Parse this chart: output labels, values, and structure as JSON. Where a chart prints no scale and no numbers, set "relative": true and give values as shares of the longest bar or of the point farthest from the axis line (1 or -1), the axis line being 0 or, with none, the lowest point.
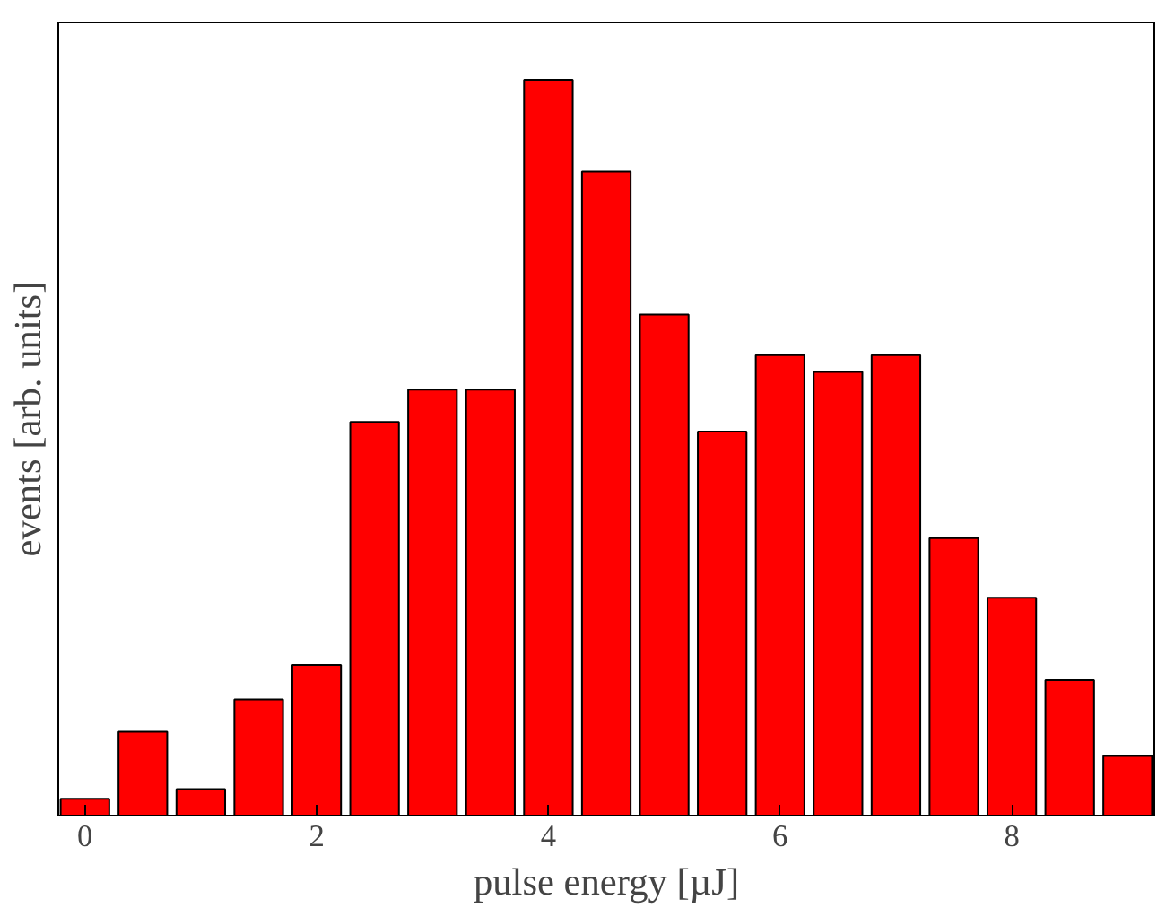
{
  "chart_data": {
    "type": "bar",
    "xlabel": "pulse energy [µJ]",
    "ylabel": "events [arb. units]",
    "relative": true,
    "color": "#ff0000",
    "x": [
      0,
      0.5,
      1,
      1.5,
      2,
      2.5,
      3,
      3.5,
      4,
      4.5,
      5,
      5.5,
      6,
      6.5,
      7,
      7.5,
      8,
      8.5,
      9
    ],
    "values": [
      0.023,
      0.114,
      0.036,
      0.158,
      0.205,
      0.535,
      0.579,
      0.579,
      1,
      0.875,
      0.681,
      0.522,
      0.626,
      0.603,
      0.626,
      0.377,
      0.296,
      0.184,
      0.081
    ],
    "xlim": [
      -0.23,
      9.23
    ],
    "xticks": [
      0,
      2,
      4,
      6,
      8
    ],
    "tick_labels": "x"
  }
}
